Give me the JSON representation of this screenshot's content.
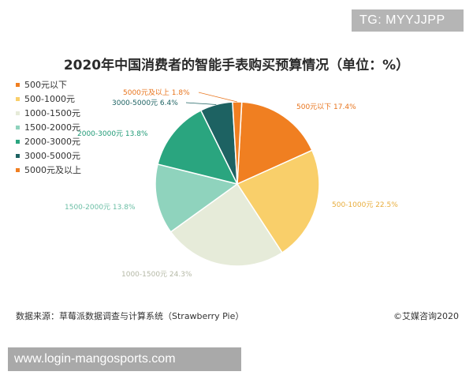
{
  "watermark_badge": "TG: MYYJJPP",
  "url_banner": "www.login-mangosports.com",
  "footer": {
    "source": "数据来源：草莓派数据调查与计算系统（Strawberry Pie）",
    "copyright": "©艾媒咨询2020"
  },
  "chart_data": {
    "type": "pie",
    "title": "2020年中国消费者的智能手表购买预算情况（单位：%）",
    "legend_position": "left",
    "categories": [
      "500元以下",
      "500-1000元",
      "1000-1500元",
      "1500-2000元",
      "2000-3000元",
      "3000-5000元",
      "5000元及以上"
    ],
    "values": [
      17.4,
      22.5,
      24.3,
      13.8,
      13.8,
      6.4,
      1.8
    ],
    "data_labels": [
      "500元以下 17.4%",
      "500-1000元 22.5%",
      "1000-1500元 24.3%",
      "1500-2000元 13.8%",
      "2000-3000元 13.8%",
      "3000-5000元 6.4%",
      "5000元及以上 1.8%"
    ],
    "colors": [
      "#f07f21",
      "#f9cf6a",
      "#e6ebd9",
      "#8fd3bd",
      "#2aa57f",
      "#1d6262",
      "#f07f21"
    ],
    "label_colors": [
      "#e8741c",
      "#e8ad3c",
      "#b5b9a6",
      "#6bbea5",
      "#1f9a76",
      "#1d6262",
      "#e8741c"
    ]
  }
}
